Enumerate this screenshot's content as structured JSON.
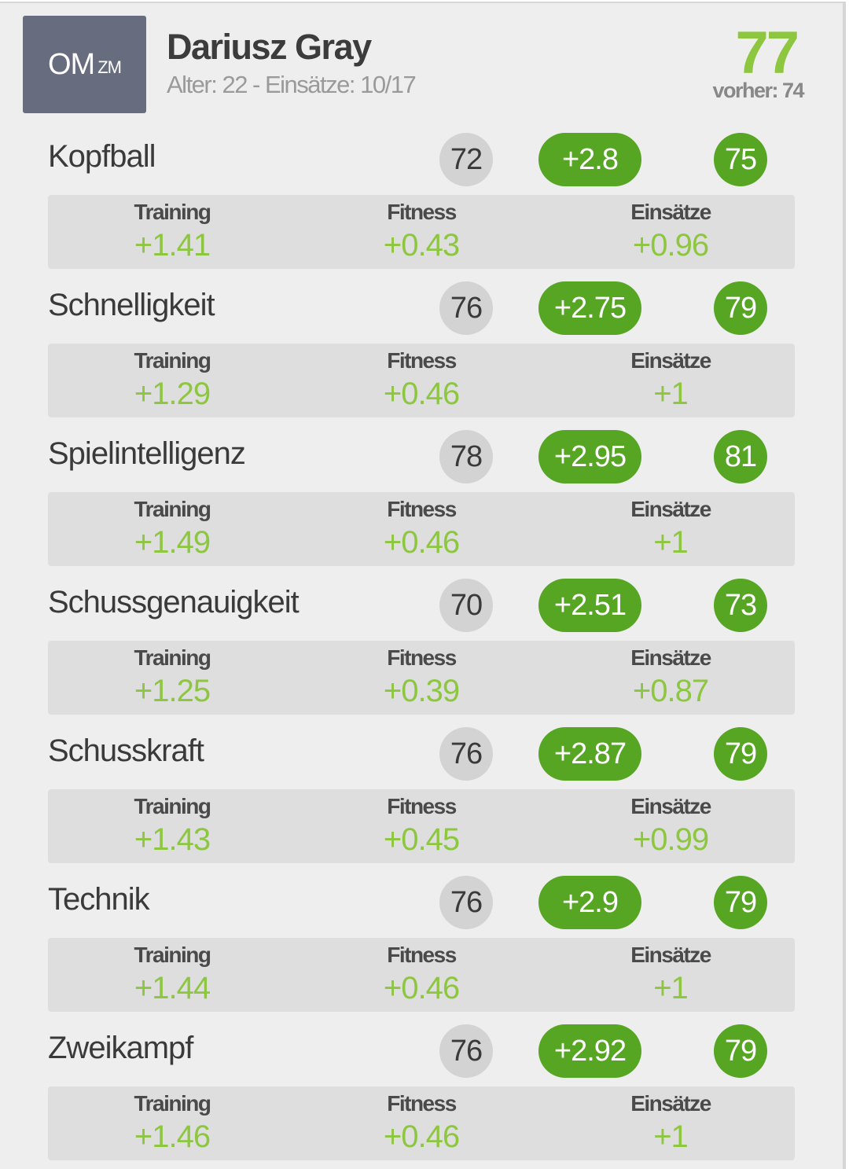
{
  "player": {
    "position_main": "OM",
    "position_sub": "ZM",
    "name": "Dariusz Gray",
    "meta": "Alter: 22 - Einsätze: 10/17",
    "overall": "77",
    "previous": "vorher: 74"
  },
  "detail_labels": {
    "training": "Training",
    "fitness": "Fitness",
    "matches": "Einsätze"
  },
  "attributes": [
    {
      "name": "Kopfball",
      "old": "72",
      "gain": "+2.8",
      "new": "75",
      "training": "+1.41",
      "fitness": "+0.43",
      "matches": "+0.96"
    },
    {
      "name": "Schnelligkeit",
      "old": "76",
      "gain": "+2.75",
      "new": "79",
      "training": "+1.29",
      "fitness": "+0.46",
      "matches": "+1"
    },
    {
      "name": "Spielintelligenz",
      "old": "78",
      "gain": "+2.95",
      "new": "81",
      "training": "+1.49",
      "fitness": "+0.46",
      "matches": "+1"
    },
    {
      "name": "Schussgenauigkeit",
      "old": "70",
      "gain": "+2.51",
      "new": "73",
      "training": "+1.25",
      "fitness": "+0.39",
      "matches": "+0.87"
    },
    {
      "name": "Schusskraft",
      "old": "76",
      "gain": "+2.87",
      "new": "79",
      "training": "+1.43",
      "fitness": "+0.45",
      "matches": "+0.99"
    },
    {
      "name": "Technik",
      "old": "76",
      "gain": "+2.9",
      "new": "79",
      "training": "+1.44",
      "fitness": "+0.46",
      "matches": "+1"
    },
    {
      "name": "Zweikampf",
      "old": "76",
      "gain": "+2.92",
      "new": "79",
      "training": "+1.46",
      "fitness": "+0.46",
      "matches": "+1"
    }
  ],
  "colors": {
    "accent_green": "#56a623",
    "light_green": "#8dc63f",
    "badge_gray": "#676c7f",
    "old_value_bg": "#d3d3d3"
  }
}
